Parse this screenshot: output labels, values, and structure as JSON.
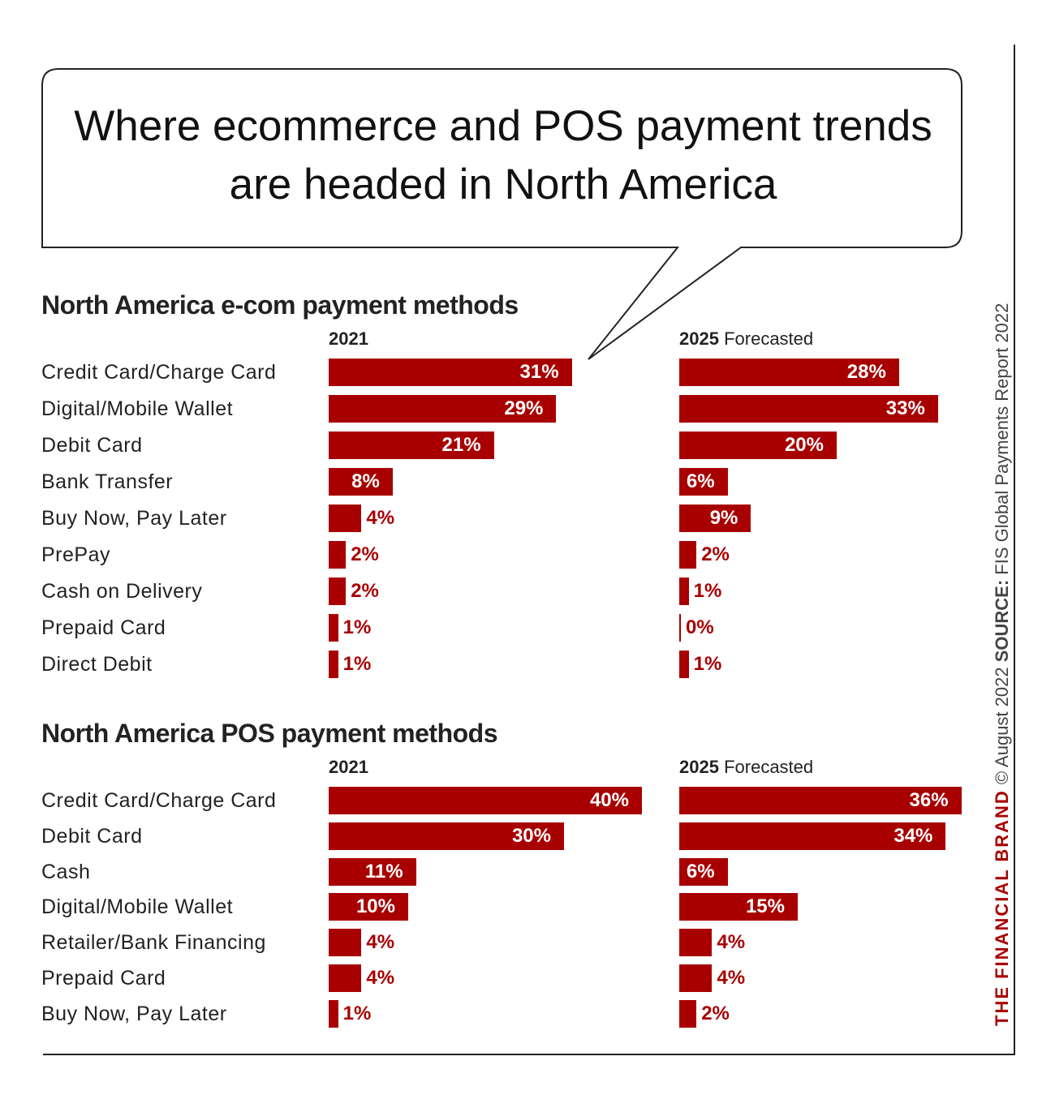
{
  "headline": "Where ecommerce and POS payment trends are headed in North America",
  "credit": {
    "brand": "THE FINANCIAL BRAND",
    "date": "© August 2022",
    "source_label": "SOURCE:",
    "source": "FIS Global Payments Report 2022"
  },
  "chart_data": [
    {
      "type": "bar",
      "orientation": "horizontal",
      "title": "North America e-com payment methods",
      "categories": [
        "Credit Card/Charge Card",
        "Digital/Mobile Wallet",
        "Debit Card",
        "Bank Transfer",
        "Buy Now, Pay Later",
        "PrePay",
        "Cash on Delivery",
        "Prepaid Card",
        "Direct Debit"
      ],
      "series": [
        {
          "name": "2021",
          "color": "#a80000",
          "values": [
            31,
            29,
            21,
            8,
            4,
            2,
            2,
            1,
            1
          ],
          "value_labels": [
            "31%",
            "29%",
            "21%",
            "8%",
            "4%",
            "2%",
            "2%",
            "1%",
            "1%"
          ]
        },
        {
          "name": "2025",
          "note": "Forecasted",
          "color": "#a80000",
          "values": [
            28,
            33,
            20,
            6,
            9,
            2,
            1,
            0,
            1
          ],
          "value_labels": [
            "28%",
            "33%",
            "20%",
            "6%",
            "9%",
            "2%",
            "1%",
            "0%",
            "1%"
          ]
        }
      ]
    },
    {
      "type": "bar",
      "orientation": "horizontal",
      "title": "North America POS payment methods",
      "categories": [
        "Credit Card/Charge Card",
        "Debit Card",
        "Cash",
        "Digital/Mobile Wallet",
        "Retailer/Bank Financing",
        "Prepaid Card",
        "Buy Now, Pay Later"
      ],
      "series": [
        {
          "name": "2021",
          "color": "#a80000",
          "values": [
            40,
            30,
            11,
            10,
            4,
            4,
            1
          ],
          "value_labels": [
            "40%",
            "30%",
            "11%",
            "10%",
            "4%",
            "4%",
            "1%"
          ]
        },
        {
          "name": "2025",
          "note": "Forecasted",
          "color": "#a80000",
          "values": [
            36,
            34,
            6,
            15,
            4,
            4,
            2
          ],
          "value_labels": [
            "36%",
            "34%",
            "6%",
            "15%",
            "4%",
            "4%",
            "2%"
          ]
        }
      ]
    }
  ]
}
